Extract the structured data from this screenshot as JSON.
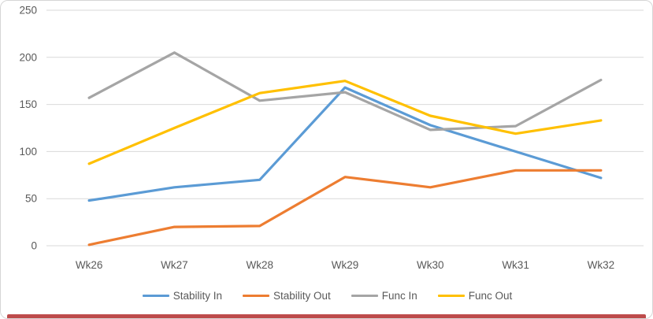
{
  "chart_data": {
    "type": "line",
    "categories": [
      "Wk26",
      "Wk27",
      "Wk28",
      "Wk29",
      "Wk30",
      "Wk31",
      "Wk32"
    ],
    "series": [
      {
        "name": "Stability In",
        "color": "#5B9BD5",
        "values": [
          48,
          62,
          70,
          168,
          128,
          100,
          72
        ]
      },
      {
        "name": "Stability Out",
        "color": "#ED7D31",
        "values": [
          1,
          20,
          21,
          73,
          62,
          80,
          80
        ]
      },
      {
        "name": "Func In",
        "color": "#A5A5A5",
        "values": [
          157,
          205,
          154,
          163,
          123,
          127,
          176
        ]
      },
      {
        "name": "Func Out",
        "color": "#FFC000",
        "values": [
          87,
          125,
          162,
          175,
          138,
          119,
          133
        ]
      }
    ],
    "title": "",
    "xlabel": "",
    "ylabel": "",
    "ylim": [
      0,
      250
    ],
    "ytick_step": 50,
    "grid": true,
    "legend_position": "bottom",
    "gridline_color": "#D9D9D9",
    "tick_label_color": "#595959"
  },
  "decor": {
    "bottom_bar_color": "#bd4b4b"
  }
}
